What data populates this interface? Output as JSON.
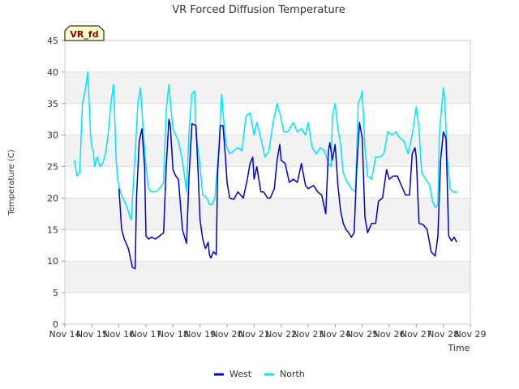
{
  "chart_data": {
    "type": "line",
    "title": "VR Forced Diffusion Temperature",
    "xlabel": "Time",
    "ylabel": "Temperature (C)",
    "badge": "VR_fd",
    "xlim": [
      14,
      29
    ],
    "ylim": [
      0,
      45
    ],
    "x_ticks": [
      {
        "x": 14,
        "label": "Nov 14"
      },
      {
        "x": 15,
        "label": "Nov 15"
      },
      {
        "x": 16,
        "label": "Nov 16"
      },
      {
        "x": 17,
        "label": "Nov 17"
      },
      {
        "x": 18,
        "label": "Nov 18"
      },
      {
        "x": 19,
        "label": "Nov 19"
      },
      {
        "x": 20,
        "label": "Nov 20"
      },
      {
        "x": 21,
        "label": "Nov 21"
      },
      {
        "x": 22,
        "label": "Nov 22"
      },
      {
        "x": 23,
        "label": "Nov 23"
      },
      {
        "x": 24,
        "label": "Nov 24"
      },
      {
        "x": 25,
        "label": "Nov 25"
      },
      {
        "x": 26,
        "label": "Nov 26"
      },
      {
        "x": 27,
        "label": "Nov 27"
      },
      {
        "x": 28,
        "label": "Nov 28"
      },
      {
        "x": 29,
        "label": "Nov 29"
      }
    ],
    "y_ticks": [
      0,
      5,
      10,
      15,
      20,
      25,
      30,
      35,
      40,
      45
    ],
    "grid": true,
    "legend_position": "bottom-center",
    "series": [
      {
        "name": "West",
        "color": "#0000cc",
        "x": [
          16.0,
          16.1,
          16.2,
          16.35,
          16.5,
          16.6,
          16.65,
          16.75,
          16.85,
          16.95,
          17.0,
          17.1,
          17.2,
          17.35,
          17.5,
          17.65,
          17.75,
          17.85,
          17.9,
          18.0,
          18.1,
          18.2,
          18.35,
          18.5,
          18.6,
          18.7,
          18.85,
          18.95,
          19.0,
          19.1,
          19.2,
          19.3,
          19.35,
          19.4,
          19.5,
          19.6,
          19.65,
          19.75,
          19.85,
          19.95,
          20.0,
          20.1,
          20.25,
          20.4,
          20.5,
          20.6,
          20.75,
          20.85,
          20.95,
          21.0,
          21.1,
          21.25,
          21.35,
          21.5,
          21.6,
          21.75,
          21.85,
          21.95,
          22.0,
          22.15,
          22.3,
          22.45,
          22.6,
          22.75,
          22.9,
          23.0,
          23.2,
          23.35,
          23.5,
          23.65,
          23.75,
          23.8,
          23.9,
          24.0,
          24.1,
          24.2,
          24.3,
          24.4,
          24.5,
          24.6,
          24.7,
          24.8,
          24.9,
          25.0,
          25.1,
          25.2,
          25.35,
          25.5,
          25.6,
          25.75,
          25.9,
          26.0,
          26.15,
          26.3,
          26.45,
          26.6,
          26.75,
          26.85,
          26.95,
          27.0,
          27.1,
          27.25,
          27.4,
          27.55,
          27.7,
          27.8,
          27.9,
          28.0,
          28.1,
          28.2,
          28.3,
          28.4,
          28.5
        ],
        "values": [
          21.5,
          15.0,
          13.5,
          12.0,
          9.0,
          8.8,
          20.0,
          29.0,
          31.0,
          25.0,
          14.0,
          13.5,
          13.8,
          13.5,
          14.0,
          14.5,
          25.0,
          32.5,
          31.5,
          24.5,
          23.5,
          23.0,
          15.0,
          12.8,
          24.0,
          31.8,
          31.5,
          22.0,
          16.5,
          13.5,
          12.0,
          13.0,
          11.0,
          10.5,
          11.5,
          11.0,
          24.0,
          31.5,
          31.5,
          26.0,
          22.5,
          20.0,
          19.8,
          21.0,
          20.5,
          20.0,
          23.0,
          25.5,
          26.5,
          23.0,
          25.0,
          21.0,
          21.0,
          20.0,
          20.0,
          21.5,
          26.0,
          28.5,
          26.0,
          25.5,
          22.5,
          23.0,
          22.5,
          25.5,
          22.0,
          21.5,
          22.0,
          21.0,
          20.5,
          17.5,
          27.5,
          28.8,
          26.0,
          28.5,
          22.0,
          18.0,
          16.0,
          15.0,
          14.5,
          13.8,
          14.5,
          25.0,
          32.0,
          29.5,
          17.0,
          14.5,
          16.0,
          16.0,
          19.5,
          20.0,
          24.5,
          23.0,
          23.5,
          23.5,
          22.0,
          20.5,
          20.5,
          27.0,
          28.0,
          26.5,
          16.0,
          15.8,
          15.0,
          11.5,
          10.8,
          14.0,
          26.0,
          30.5,
          29.5,
          14.0,
          13.2,
          13.8,
          13.0
        ]
      },
      {
        "name": "North",
        "color": "#00e5ff",
        "x": [
          14.35,
          14.45,
          14.55,
          14.65,
          14.75,
          14.85,
          14.95,
          15.0,
          15.05,
          15.1,
          15.2,
          15.3,
          15.4,
          15.5,
          15.6,
          15.7,
          15.8,
          15.9,
          15.95,
          16.0,
          16.05,
          16.15,
          16.3,
          16.45,
          16.6,
          16.7,
          16.8,
          16.9,
          17.0,
          17.1,
          17.2,
          17.35,
          17.5,
          17.65,
          17.75,
          17.85,
          17.95,
          18.0,
          18.1,
          18.2,
          18.35,
          18.5,
          18.6,
          18.7,
          18.8,
          18.85,
          18.95,
          19.0,
          19.1,
          19.25,
          19.35,
          19.45,
          19.55,
          19.7,
          19.8,
          19.9,
          19.95,
          20.0,
          20.1,
          20.25,
          20.4,
          20.55,
          20.7,
          20.85,
          21.0,
          21.1,
          21.25,
          21.4,
          21.55,
          21.7,
          21.85,
          21.95,
          22.0,
          22.1,
          22.25,
          22.45,
          22.6,
          22.75,
          22.9,
          23.0,
          23.15,
          23.3,
          23.45,
          23.6,
          23.75,
          23.85,
          23.9,
          24.0,
          24.1,
          24.2,
          24.3,
          24.45,
          24.6,
          24.75,
          24.85,
          24.95,
          25.0,
          25.1,
          25.2,
          25.35,
          25.5,
          25.65,
          25.8,
          25.95,
          26.1,
          26.25,
          26.4,
          26.55,
          26.7,
          26.85,
          26.95,
          27.0,
          27.1,
          27.2,
          27.35,
          27.5,
          27.6,
          27.7,
          27.8,
          27.85,
          27.95,
          28.0,
          28.05,
          28.15,
          28.25,
          28.35,
          28.45,
          28.5
        ],
        "values": [
          26.0,
          23.5,
          24.0,
          35.0,
          37.0,
          40.0,
          30.0,
          28.0,
          27.5,
          25.0,
          26.5,
          25.0,
          25.5,
          27.0,
          30.0,
          35.0,
          38.0,
          26.0,
          23.0,
          22.0,
          21.0,
          20.0,
          18.5,
          16.5,
          27.0,
          35.0,
          37.5,
          30.5,
          25.0,
          21.5,
          21.0,
          21.0,
          21.5,
          22.5,
          34.0,
          38.0,
          33.0,
          31.0,
          30.0,
          29.0,
          26.0,
          21.0,
          31.0,
          36.5,
          37.0,
          30.0,
          27.0,
          25.0,
          20.5,
          20.0,
          19.0,
          19.0,
          20.0,
          28.0,
          36.5,
          31.0,
          29.0,
          28.0,
          27.0,
          27.5,
          28.0,
          27.5,
          33.0,
          33.5,
          30.0,
          32.0,
          29.5,
          26.5,
          27.5,
          32.0,
          35.0,
          33.5,
          32.5,
          30.5,
          30.5,
          32.0,
          30.5,
          31.0,
          30.0,
          32.0,
          28.0,
          27.0,
          28.0,
          27.5,
          25.5,
          25.0,
          33.0,
          35.0,
          31.0,
          28.5,
          24.0,
          22.5,
          21.5,
          21.0,
          35.0,
          36.0,
          37.0,
          28.0,
          23.5,
          23.0,
          26.5,
          26.5,
          27.0,
          30.5,
          30.0,
          30.5,
          29.5,
          29.0,
          27.0,
          30.0,
          33.0,
          34.5,
          31.0,
          24.0,
          23.0,
          22.0,
          19.5,
          18.5,
          19.0,
          30.0,
          35.0,
          37.5,
          36.0,
          26.0,
          21.5,
          21.0,
          21.0,
          20.8
        ]
      }
    ]
  }
}
